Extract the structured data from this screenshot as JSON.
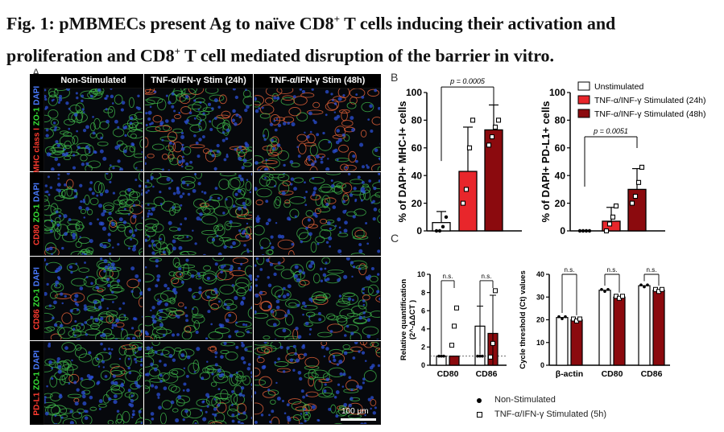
{
  "figure": {
    "title_line1": "Fig. 1: pMBMECs present Ag to naïve CD8",
    "title_line1_tail": " T cells inducing their activation and",
    "title_line2": "proliferation and CD8",
    "title_line2_tail": " T cell mediated disruption of the barrier in vitro.",
    "sup": "+"
  },
  "panels": {
    "a": "A",
    "b": "B",
    "c": "C"
  },
  "micrographs": {
    "columns": [
      "Non-Stimulated",
      "TNF-α/IFN-γ Stim (24h)",
      "TNF-α/IFN-γ Stim (48h)"
    ],
    "rows": [
      {
        "parts": [
          {
            "text": "MHC class I ",
            "color": "#ff3b30"
          },
          {
            "text": "ZO-1 ",
            "color": "#37e637"
          },
          {
            "text": "DAPI",
            "color": "#4a7bff"
          }
        ]
      },
      {
        "parts": [
          {
            "text": "CD80 ",
            "color": "#ff3b30"
          },
          {
            "text": "ZO-1 ",
            "color": "#37e637"
          },
          {
            "text": "DAPI",
            "color": "#4a7bff"
          }
        ]
      },
      {
        "parts": [
          {
            "text": "CD86 ",
            "color": "#ff3b30"
          },
          {
            "text": "ZO-1 ",
            "color": "#37e637"
          },
          {
            "text": "DAPI",
            "color": "#4a7bff"
          }
        ]
      },
      {
        "parts": [
          {
            "text": "PD-L1 ",
            "color": "#ff3b30"
          },
          {
            "text": "ZO-1 ",
            "color": "#37e637"
          },
          {
            "text": "DAPI",
            "color": "#4a7bff"
          }
        ]
      }
    ],
    "scale_bar": "100 µm"
  },
  "colors": {
    "unstim": "#ffffff",
    "stim24": "#e8262b",
    "stim48": "#8b0a0e",
    "axis": "#000000"
  },
  "chart_data": [
    {
      "id": "b1",
      "type": "bar",
      "categories": [
        "Unstimulated",
        "TNF-α/INF-γ Stimulated (24h)",
        "TNF-α/INF-γ Stimulated (48h)"
      ],
      "values": [
        6,
        43,
        73
      ],
      "errors": [
        8,
        32,
        18
      ],
      "points": [
        [
          0,
          0,
          3,
          10
        ],
        [
          20,
          30,
          60,
          80
        ],
        [
          62,
          68,
          75,
          80
        ]
      ],
      "ylabel": "% of DAPI+ MHC-I+ cells",
      "ylim": [
        0,
        100
      ],
      "yticks": [
        0,
        20,
        40,
        60,
        80,
        100
      ],
      "pvalue": "p = 0.0005"
    },
    {
      "id": "b2",
      "type": "bar",
      "categories": [
        "Unstimulated",
        "TNF-α/INF-γ Stimulated (24h)",
        "TNF-α/INF-γ Stimulated (48h)"
      ],
      "values": [
        0,
        7,
        30
      ],
      "errors": [
        0,
        10,
        15
      ],
      "points": [
        [
          0,
          0,
          0,
          0
        ],
        [
          0,
          5,
          10,
          18
        ],
        [
          20,
          25,
          35,
          46
        ]
      ],
      "ylabel": "% of DAPI+ PD-L1+ cells",
      "ylim": [
        0,
        100
      ],
      "yticks": [
        0,
        20,
        40,
        60,
        80,
        100
      ],
      "pvalue": "p = 0.0051",
      "legend": [
        "Unstimulated",
        "TNF-α/INF-γ Stimulated (24h)",
        "TNF-α/INF-γ Stimulated (48h)"
      ]
    },
    {
      "id": "c1",
      "type": "bar",
      "categories": [
        "CD80",
        "CD86"
      ],
      "series": [
        {
          "values": [
            1,
            4.3
          ],
          "errors": [
            0,
            2.2
          ]
        },
        {
          "values": [
            1,
            3.5
          ],
          "errors": [
            0,
            4.2
          ]
        }
      ],
      "points": [
        [
          [
            1,
            1,
            1
          ],
          [
            2.2,
            4.3,
            6.3
          ]
        ],
        [
          [
            1,
            1,
            1
          ],
          [
            0.9,
            2.4,
            8.2
          ]
        ]
      ],
      "ylabel": "Relative quantification (2^-ΔΔCT )",
      "ylim": [
        0,
        10
      ],
      "yticks": [
        0,
        2,
        4,
        6,
        8,
        10
      ],
      "significance": [
        "n.s.",
        "n.s."
      ]
    },
    {
      "id": "c2",
      "type": "bar",
      "categories": [
        "β-actin",
        "CD80",
        "CD86"
      ],
      "series": [
        {
          "values": [
            21,
            33,
            35
          ]
        },
        {
          "values": [
            20,
            30,
            33
          ]
        }
      ],
      "ylabel": "Cycle threshold (Ct) values",
      "ylim": [
        0,
        40
      ],
      "yticks": [
        0,
        10,
        20,
        30,
        40
      ],
      "significance": [
        "n.s.",
        "n.s.",
        "n.s."
      ],
      "legend": [
        "Non-Stimulated",
        "TNF-α/IFN-γ Stimulated (5h)"
      ]
    }
  ]
}
